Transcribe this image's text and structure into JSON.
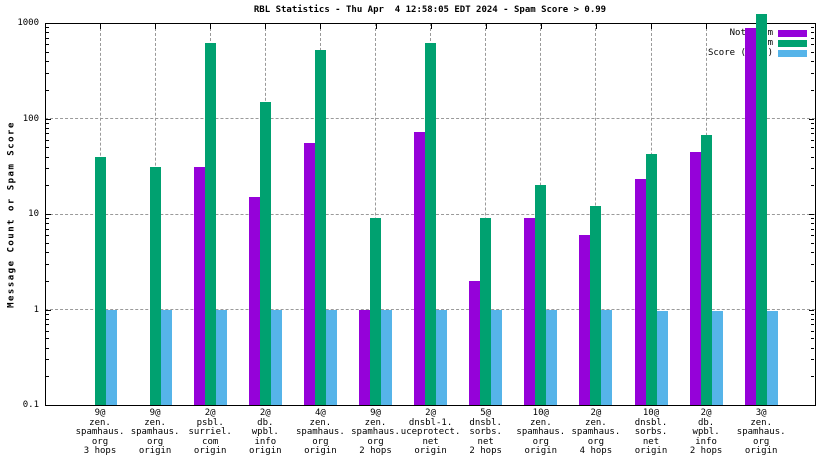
{
  "chart_data": {
    "type": "bar",
    "title": "RBL Statistics - Thu Apr  4 12:58:05 EDT 2024 - Spam Score > 0.99",
    "ylabel": "Message Count or Spam Score",
    "xlabel": "",
    "yscale": "log",
    "ylim": [
      0.1,
      1000
    ],
    "ytick_labels": [
      "1000",
      "100",
      "10",
      "1",
      "0.1"
    ],
    "ytick_values": [
      1000,
      100,
      10,
      1,
      0.1
    ],
    "grid": true,
    "legend_position": "top-right-inside",
    "background_color": "#ffffff",
    "grid_color": "#9a9a9a",
    "categories": [
      [
        "9@",
        "zen.",
        "spamhaus.",
        "org",
        "3 hops"
      ],
      [
        "9@",
        "zen.",
        "spamhaus.",
        "org",
        "origin"
      ],
      [
        "2@",
        "psbl.",
        "surriel.",
        "com",
        "origin"
      ],
      [
        "2@",
        "db.",
        "wpbl.",
        "info",
        "origin"
      ],
      [
        "4@",
        "zen.",
        "spamhaus.",
        "org",
        "origin"
      ],
      [
        "9@",
        "zen.",
        "spamhaus.",
        "org",
        "2 hops"
      ],
      [
        "2@",
        "dnsbl-1.",
        "uceprotect.",
        "net",
        "origin"
      ],
      [
        "5@",
        "dnsbl.",
        "sorbs.",
        "net",
        "2 hops"
      ],
      [
        "10@",
        "zen.",
        "spamhaus.",
        "org",
        "origin"
      ],
      [
        "2@",
        "zen.",
        "spamhaus.",
        "org",
        "4 hops"
      ],
      [
        "10@",
        "dnsbl.",
        "sorbs.",
        "net",
        "origin"
      ],
      [
        "2@",
        "db.",
        "wpbl.",
        "info",
        "2 hops"
      ],
      [
        "3@",
        "zen.",
        "spamhaus.",
        "org",
        "origin"
      ]
    ],
    "series": [
      {
        "name": "Not Spam",
        "color": "#9502d9",
        "values": [
          0,
          0,
          31,
          15,
          55,
          1,
          72,
          2,
          9,
          6,
          23,
          45,
          880
        ]
      },
      {
        "name": "Spam",
        "color": "#00a170",
        "values": [
          40,
          31,
          620,
          150,
          520,
          9,
          620,
          9,
          20,
          12,
          42,
          67,
          1250
        ]
      },
      {
        "name": "Score (0..1)",
        "color": "#56b4e9",
        "values": [
          1,
          1,
          1,
          1,
          1,
          1,
          1,
          1,
          1,
          1,
          0.97,
          0.97,
          0.97
        ]
      }
    ]
  }
}
